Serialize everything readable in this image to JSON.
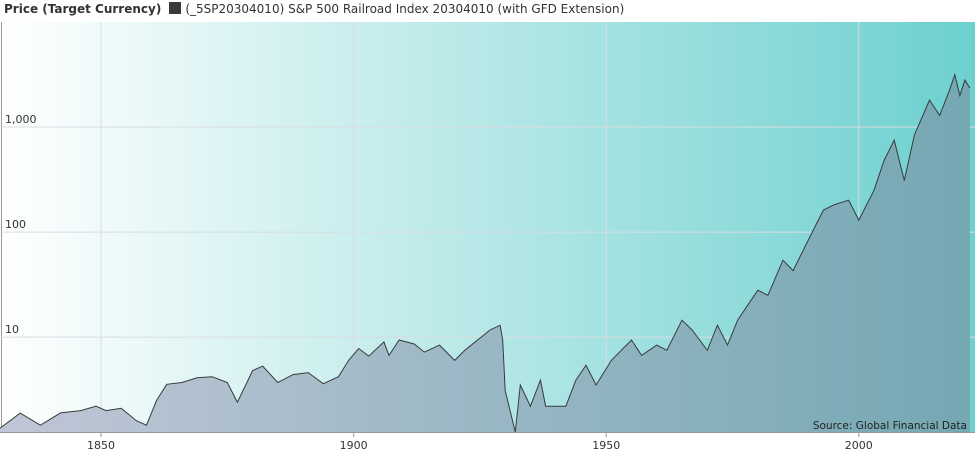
{
  "chart_data": {
    "type": "area",
    "legend_title": "Price (Target Currency)",
    "source": "Source: Global Financial Data",
    "log_scale": true,
    "grid": true,
    "background_colors": [
      "#ffffff",
      "#6dd0cf"
    ],
    "xlim": [
      1830,
      2023
    ],
    "ylim": [
      1.25,
      10000
    ],
    "xticks": [
      1850,
      1900,
      1950,
      2000
    ],
    "yticks": [
      10,
      100,
      {
        "value": 1000,
        "label": "1,000"
      }
    ],
    "series": [
      {
        "name": "(_5SP20304010) S&P 500 Railroad Index 20304010 (with GFD Extension)",
        "color": "#3a3a3a",
        "fill_colors": [
          "#c0c6d6",
          "#74a8b3"
        ],
        "x": [
          1830,
          1834,
          1838,
          1842,
          1846,
          1849,
          1851,
          1854,
          1857,
          1859,
          1861,
          1863,
          1866,
          1869,
          1872,
          1875,
          1877,
          1880,
          1882,
          1885,
          1888,
          1891,
          1894,
          1897,
          1899,
          1901,
          1903,
          1906,
          1907,
          1909,
          1912,
          1914,
          1917,
          1920,
          1922,
          1925,
          1927,
          1929,
          1929.5,
          1930,
          1932,
          1933,
          1935,
          1937,
          1938,
          1942,
          1944,
          1946,
          1948,
          1951,
          1955,
          1957,
          1960,
          1962,
          1965,
          1967,
          1970,
          1972,
          1974,
          1976,
          1980,
          1982,
          1985,
          1987,
          1990,
          1993,
          1995,
          1998,
          2000,
          2003,
          2005,
          2007,
          2009,
          2011,
          2014,
          2016,
          2018,
          2019,
          2020,
          2021,
          2022
        ],
        "values": [
          1.36,
          1.89,
          1.45,
          1.9,
          2.0,
          2.2,
          2.0,
          2.1,
          1.6,
          1.45,
          2.5,
          3.56,
          3.7,
          4.1,
          4.2,
          3.7,
          2.4,
          4.8,
          5.3,
          3.7,
          4.4,
          4.6,
          3.6,
          4.2,
          6.0,
          7.8,
          6.6,
          9.0,
          6.7,
          9.4,
          8.6,
          7.2,
          8.4,
          6.0,
          7.5,
          9.8,
          11.7,
          13,
          9.4,
          3.1,
          1.25,
          3.5,
          2.2,
          3.9,
          2.2,
          2.2,
          3.9,
          5.4,
          3.5,
          6.0,
          9.4,
          6.7,
          8.4,
          7.5,
          14.5,
          11.7,
          7.5,
          13,
          8.4,
          14.5,
          28,
          25,
          54,
          43,
          84,
          162,
          181,
          201,
          130,
          250,
          480,
          750,
          310,
          840,
          1810,
          1290,
          2260,
          3150,
          2000,
          2800,
          2350
        ]
      }
    ]
  }
}
